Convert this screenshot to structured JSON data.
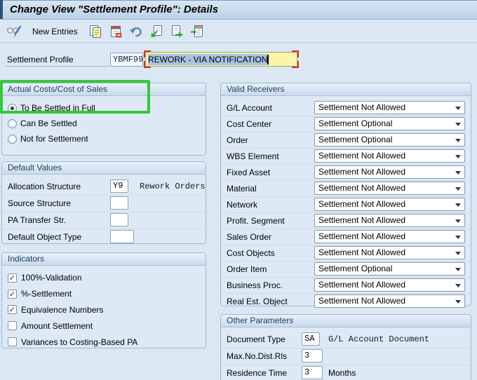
{
  "title": "Change View \"Settlement Profile\": Details",
  "toolbar": {
    "new_entries_label": "New Entries",
    "icons": [
      "display-change-icon",
      "copy-as-icon",
      "delete-icon",
      "undo-icon",
      "previous-entry-icon",
      "next-entry-icon",
      "other-entry-icon"
    ]
  },
  "profile": {
    "label": "Settlement Profile",
    "key": "YBMF99",
    "name": "REWORK - VIA NOTIFICATION"
  },
  "groups": {
    "actual_costs": {
      "title": "Actual Costs/Cost of Sales",
      "options": [
        {
          "label": "To Be Settled in Full",
          "selected": true
        },
        {
          "label": "Can Be Settled",
          "selected": false
        },
        {
          "label": "Not for Settlement",
          "selected": false
        }
      ]
    },
    "default_values": {
      "title": "Default Values",
      "fields": [
        {
          "label": "Allocation Structure",
          "value": "Y9",
          "desc": "Rework Orders"
        },
        {
          "label": "Source Structure",
          "value": "",
          "desc": ""
        },
        {
          "label": "PA Transfer Str.",
          "value": "",
          "desc": ""
        },
        {
          "label": "Default Object Type",
          "value": "",
          "desc": ""
        }
      ]
    },
    "indicators": {
      "title": "Indicators",
      "checkboxes": [
        {
          "label": "100%-Validation",
          "checked": true
        },
        {
          "label": "%-Settlement",
          "checked": true
        },
        {
          "label": "Equivalence Numbers",
          "checked": true
        },
        {
          "label": "Amount Settlement",
          "checked": false
        },
        {
          "label": "Variances to Costing-Based PA",
          "checked": false
        }
      ]
    },
    "valid_receivers": {
      "title": "Valid Receivers",
      "rows": [
        {
          "label": "G/L Account",
          "value": "Settlement Not Allowed"
        },
        {
          "label": "Cost Center",
          "value": "Settlement Optional"
        },
        {
          "label": "Order",
          "value": "Settlement Optional"
        },
        {
          "label": "WBS Element",
          "value": "Settlement Not Allowed"
        },
        {
          "label": "Fixed Asset",
          "value": "Settlement Not Allowed"
        },
        {
          "label": "Material",
          "value": "Settlement Not Allowed"
        },
        {
          "label": "Network",
          "value": "Settlement Not Allowed"
        },
        {
          "label": "Profit. Segment",
          "value": "Settlement Not Allowed"
        },
        {
          "label": "Sales Order",
          "value": "Settlement Not Allowed"
        },
        {
          "label": "Cost Objects",
          "value": "Settlement Not Allowed"
        },
        {
          "label": "Order Item",
          "value": "Settlement Optional"
        },
        {
          "label": "Business Proc.",
          "value": "Settlement Not Allowed"
        },
        {
          "label": "Real Est. Object",
          "value": "Settlement Not Allowed"
        }
      ]
    },
    "other_parameters": {
      "title": "Other Parameters",
      "fields": [
        {
          "label": "Document Type",
          "value": "SA",
          "desc": "G/L Account Document"
        },
        {
          "label": "Max.No.Dist.Rls",
          "value": "3",
          "desc": ""
        },
        {
          "label": "Residence Time",
          "value": "3",
          "desc": "Months"
        }
      ]
    }
  },
  "colors": {
    "accent_green": "#35c837",
    "focus_bracket_red": "#e02a1e",
    "field_yellow": "#fbf4ab",
    "selection_blue": "#a9c3e0"
  }
}
